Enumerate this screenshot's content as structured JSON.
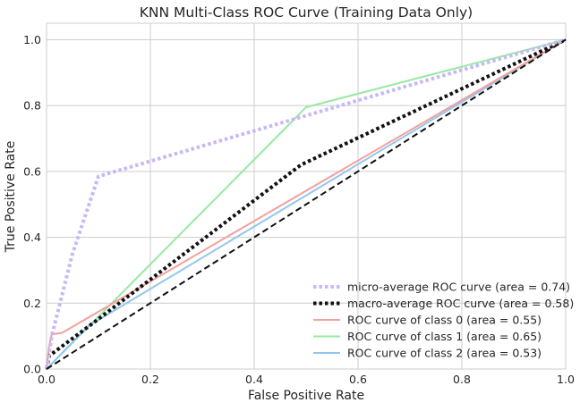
{
  "chart_data": {
    "type": "line",
    "title": "KNN Multi-Class ROC Curve (Training Data Only)",
    "xlabel": "False Positive Rate",
    "ylabel": "True Positive Rate",
    "xlim": [
      0.0,
      1.0
    ],
    "ylim": [
      0.0,
      1.05
    ],
    "xticks": [
      0.0,
      0.2,
      0.4,
      0.6,
      0.8,
      1.0
    ],
    "yticks": [
      0.0,
      0.2,
      0.4,
      0.6,
      0.8,
      1.0
    ],
    "xtick_labels": [
      "0.0",
      "0.2",
      "0.4",
      "0.6",
      "0.8",
      "1.0"
    ],
    "ytick_labels": [
      "0.0",
      "0.2",
      "0.4",
      "0.6",
      "0.8",
      "1.0"
    ],
    "grid": true,
    "legend_position": "lower-right",
    "series": [
      {
        "name": "micro-average ROC curve (area = 0.74)",
        "color": "#c8b8f5",
        "style": "dotted",
        "x": [
          0.0,
          0.01,
          0.05,
          0.1,
          1.0
        ],
        "y": [
          0.0,
          0.1,
          0.35,
          0.585,
          1.0
        ]
      },
      {
        "name": "macro-average ROC curve (area = 0.58)",
        "color": "#111111",
        "style": "dotted",
        "x": [
          0.0,
          0.005,
          0.09,
          0.49,
          1.0
        ],
        "y": [
          0.0,
          0.04,
          0.14,
          0.62,
          1.0
        ]
      },
      {
        "name": "ROC curve of class 0 (area = 0.55)",
        "color": "#f4a09c",
        "style": "solid",
        "x": [
          0.0,
          0.005,
          0.01,
          0.03,
          1.0
        ],
        "y": [
          0.0,
          0.07,
          0.105,
          0.11,
          1.0
        ]
      },
      {
        "name": "ROC curve of class 1 (area = 0.65)",
        "color": "#97e9a3",
        "style": "solid",
        "x": [
          0.0,
          0.5,
          1.0
        ],
        "y": [
          0.0,
          0.795,
          1.0
        ]
      },
      {
        "name": "ROC curve of class 2 (area = 0.53)",
        "color": "#92c6f0",
        "style": "solid",
        "x": [
          0.0,
          0.08,
          1.0
        ],
        "y": [
          0.0,
          0.13,
          1.0
        ]
      }
    ],
    "reference_line": {
      "color": "#111111",
      "style": "dashed",
      "x": [
        0.0,
        1.0
      ],
      "y": [
        0.0,
        1.0
      ]
    }
  }
}
